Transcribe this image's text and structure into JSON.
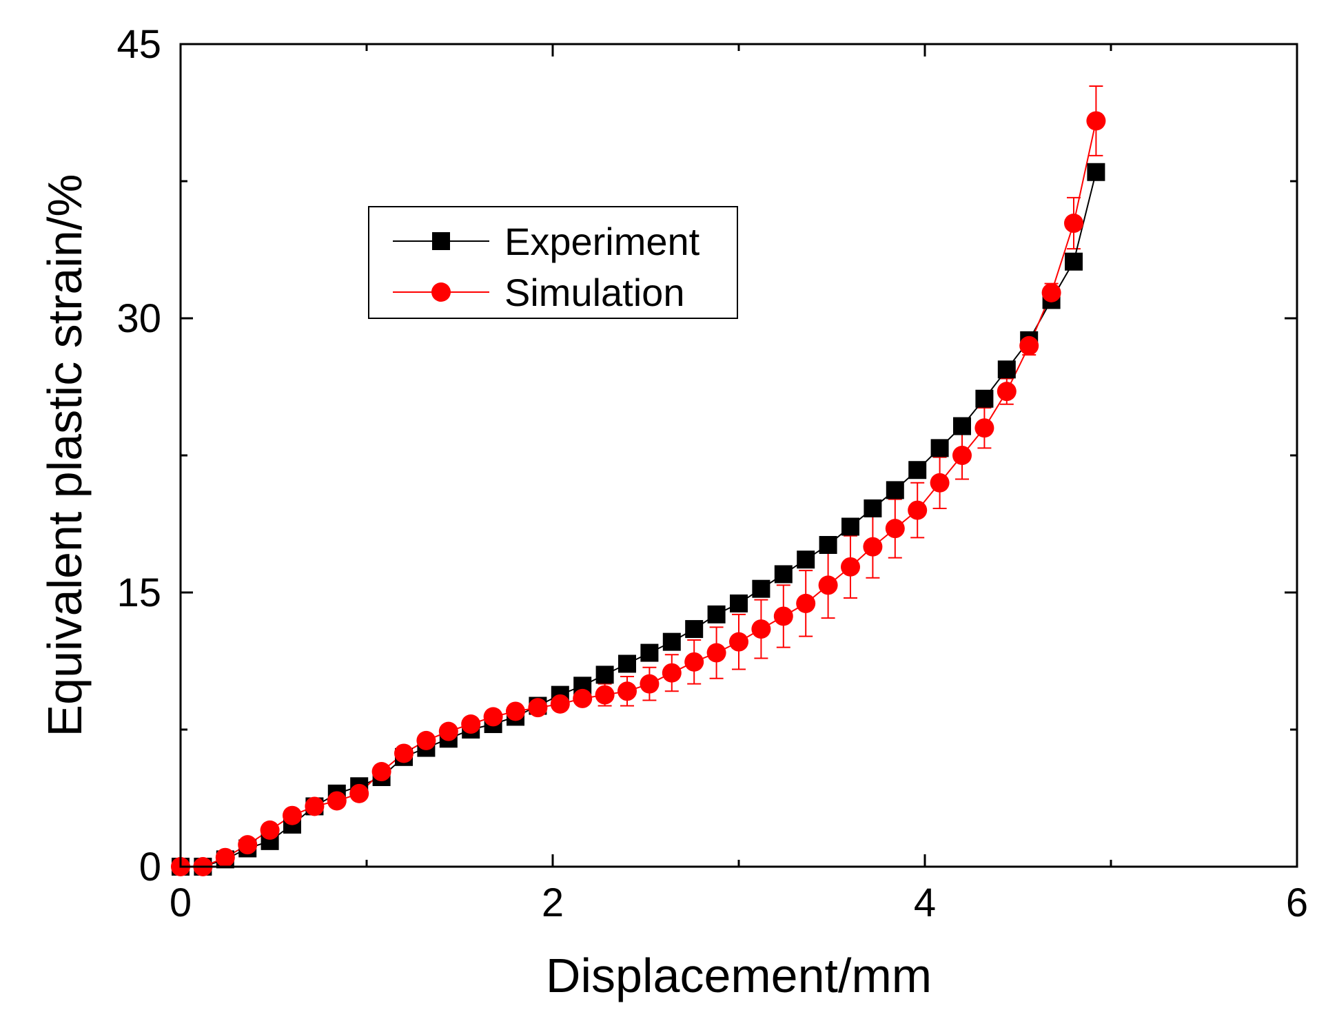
{
  "chart_data": {
    "type": "line",
    "xlabel": "Displacement/mm",
    "ylabel": "Equivalent plastic strain/%",
    "xlim": [
      0,
      6
    ],
    "ylim": [
      0,
      45
    ],
    "xticks": [
      0,
      2,
      4,
      6
    ],
    "yticks": [
      0,
      15,
      30,
      45
    ],
    "xminor": [
      1,
      3,
      5
    ],
    "yminor": [
      7.5,
      22.5,
      37.5
    ],
    "legend_position": "upper-left-center",
    "series": [
      {
        "name": "Experiment",
        "color": "#000000",
        "marker": "square",
        "x": [
          0,
          0.12,
          0.24,
          0.36,
          0.48,
          0.6,
          0.72,
          0.84,
          0.96,
          1.08,
          1.2,
          1.32,
          1.44,
          1.56,
          1.68,
          1.8,
          1.92,
          2.04,
          2.16,
          2.28,
          2.4,
          2.52,
          2.64,
          2.76,
          2.88,
          3.0,
          3.12,
          3.24,
          3.36,
          3.48,
          3.6,
          3.72,
          3.84,
          3.96,
          4.08,
          4.2,
          4.32,
          4.44,
          4.56,
          4.68,
          4.8,
          4.92
        ],
        "y": [
          0,
          0,
          0.4,
          1.0,
          1.4,
          2.3,
          3.3,
          4.0,
          4.4,
          4.9,
          6.0,
          6.5,
          7.0,
          7.5,
          7.8,
          8.2,
          8.8,
          9.4,
          9.9,
          10.5,
          11.1,
          11.7,
          12.3,
          13.0,
          13.8,
          14.4,
          15.2,
          16.0,
          16.8,
          17.6,
          18.6,
          19.6,
          20.6,
          21.7,
          22.9,
          24.1,
          25.6,
          27.2,
          28.8,
          31.0,
          33.1,
          38.0
        ]
      },
      {
        "name": "Simulation",
        "color": "#ff0000",
        "marker": "circle",
        "x": [
          0,
          0.12,
          0.24,
          0.36,
          0.48,
          0.6,
          0.72,
          0.84,
          0.96,
          1.08,
          1.2,
          1.32,
          1.44,
          1.56,
          1.68,
          1.8,
          1.92,
          2.04,
          2.16,
          2.28,
          2.4,
          2.52,
          2.64,
          2.76,
          2.88,
          3.0,
          3.12,
          3.24,
          3.36,
          3.48,
          3.6,
          3.72,
          3.84,
          3.96,
          4.08,
          4.2,
          4.32,
          4.44,
          4.56,
          4.68,
          4.8,
          4.92
        ],
        "y": [
          0,
          0,
          0.5,
          1.2,
          2.0,
          2.8,
          3.3,
          3.6,
          4.0,
          5.2,
          6.2,
          6.9,
          7.4,
          7.8,
          8.2,
          8.5,
          8.7,
          8.9,
          9.2,
          9.4,
          9.6,
          10.0,
          10.6,
          11.2,
          11.7,
          12.3,
          13.0,
          13.7,
          14.4,
          15.4,
          16.4,
          17.5,
          18.5,
          19.5,
          21.0,
          22.5,
          24.0,
          26.0,
          28.5,
          31.4,
          35.2,
          40.8
        ],
        "error": [
          0,
          0,
          0,
          0,
          0,
          0,
          0,
          0,
          0,
          0,
          0,
          0,
          0,
          0,
          0,
          0,
          0,
          0,
          0.3,
          0.6,
          0.8,
          0.9,
          1.0,
          1.2,
          1.4,
          1.5,
          1.6,
          1.7,
          1.8,
          1.8,
          1.7,
          1.7,
          1.6,
          1.5,
          1.4,
          1.3,
          1.1,
          0.7,
          0.5,
          0.5,
          1.4,
          1.9
        ]
      }
    ]
  }
}
